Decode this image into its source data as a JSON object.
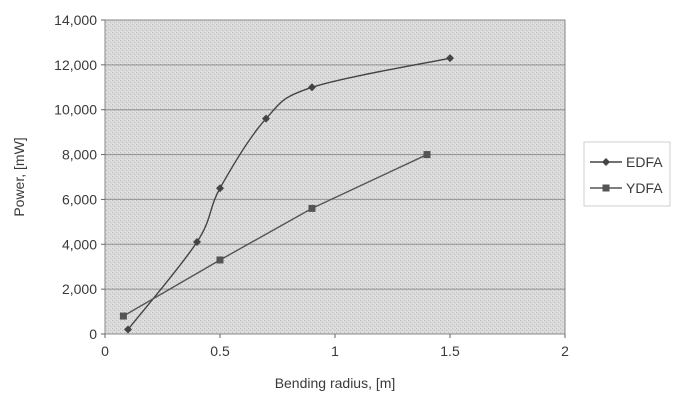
{
  "chart_data": {
    "type": "line",
    "title": "",
    "xlabel": "Bending radius, [m]",
    "ylabel": "Power, [mW]",
    "xlim": [
      0,
      2
    ],
    "ylim": [
      0,
      14000
    ],
    "x_ticks": [
      0,
      0.5,
      1,
      1.5,
      2
    ],
    "x_tick_labels": [
      "0",
      "0.5",
      "1",
      "1.5",
      "2"
    ],
    "y_ticks": [
      0,
      2000,
      4000,
      6000,
      8000,
      10000,
      12000,
      14000
    ],
    "y_tick_labels": [
      "0",
      "2,000",
      "4,000",
      "6,000",
      "8,000",
      "10,000",
      "12,000",
      "14,000"
    ],
    "grid": "horizontal",
    "legend_position": "right",
    "series": [
      {
        "name": "EDFA",
        "color": "#444444",
        "marker": "diamond",
        "smooth": true,
        "x": [
          0.1,
          0.4,
          0.5,
          0.7,
          0.9,
          1.5
        ],
        "y": [
          200,
          4100,
          6500,
          9600,
          11000,
          12300
        ]
      },
      {
        "name": "YDFA",
        "color": "#555555",
        "marker": "square",
        "smooth": false,
        "x": [
          0.08,
          0.5,
          0.9,
          1.4
        ],
        "y": [
          800,
          3300,
          5600,
          8000
        ]
      }
    ]
  }
}
